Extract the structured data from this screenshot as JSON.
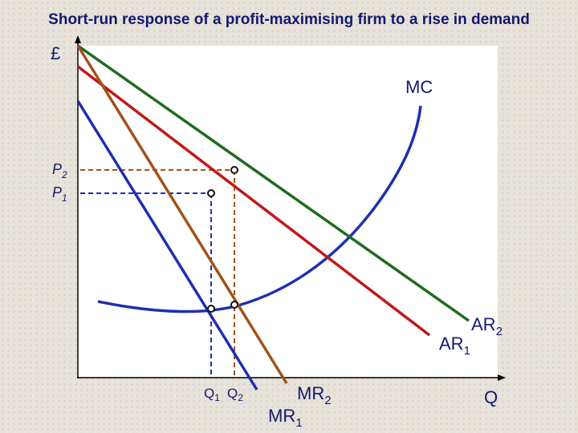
{
  "title": "Short-run response of a profit-maximising firm to a rise in demand",
  "axes": {
    "y_label": "£",
    "x_label": "Q"
  },
  "curves": [
    {
      "id": "mc",
      "label": "MC",
      "sub": "",
      "color": "#1f2fb0"
    },
    {
      "id": "ar2",
      "label": "AR",
      "sub": "2",
      "color": "#1f6b1f"
    },
    {
      "id": "ar1",
      "label": "AR",
      "sub": "1",
      "color": "#c01818"
    },
    {
      "id": "mr2",
      "label": "MR",
      "sub": "2",
      "color": "#a0521a"
    },
    {
      "id": "mr1",
      "label": "MR",
      "sub": "1",
      "color": "#1f2fb0"
    }
  ],
  "price_labels": [
    {
      "id": "p2",
      "label": "P",
      "sub": "2",
      "color": "#a0521a"
    },
    {
      "id": "p1",
      "label": "P",
      "sub": "1",
      "color": "#1f2fb0"
    }
  ],
  "quantity_labels": [
    {
      "id": "q1",
      "label": "Q",
      "sub": "1"
    },
    {
      "id": "q2",
      "label": "Q",
      "sub": "2"
    }
  ]
}
